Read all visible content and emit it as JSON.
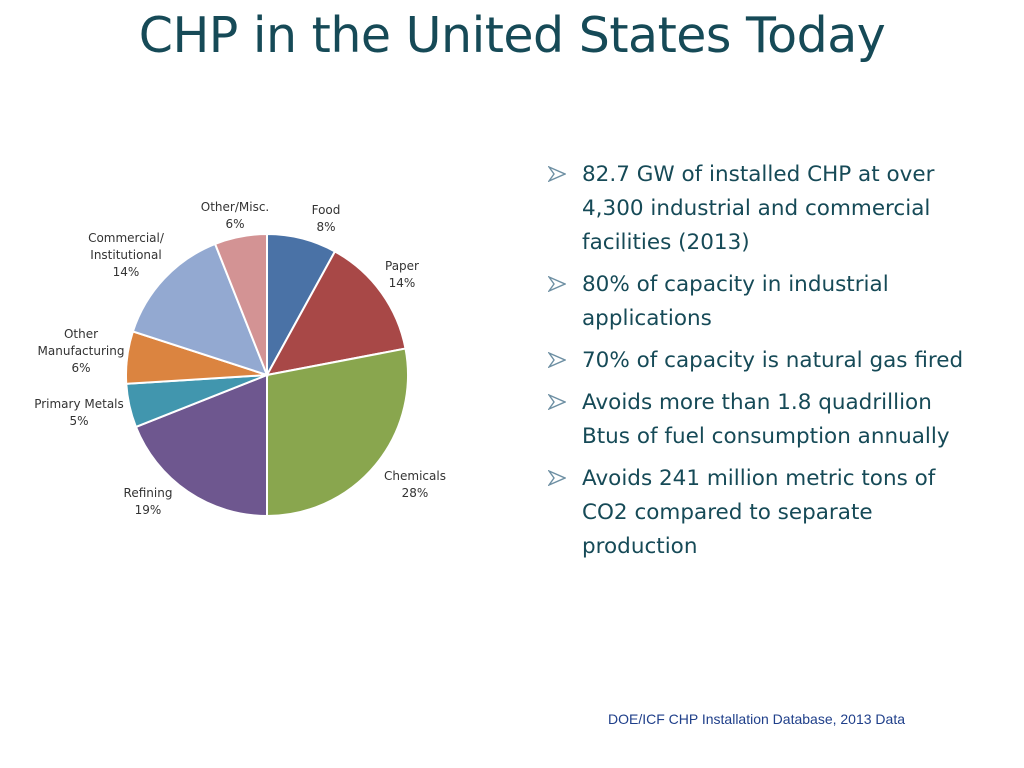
{
  "title": "CHP in the United States Today",
  "chart_data": {
    "type": "pie",
    "start_angle_deg": 0,
    "direction": "clockwise",
    "slices": [
      {
        "label": "Food",
        "value": 8,
        "value_label": "8%",
        "color": "#4a72a6"
      },
      {
        "label": "Paper",
        "value": 14,
        "value_label": "14%",
        "color": "#a84847"
      },
      {
        "label": "Chemicals",
        "value": 28,
        "value_label": "28%",
        "color": "#89a64e"
      },
      {
        "label": "Refining",
        "value": 19,
        "value_label": "19%",
        "color": "#6e578f"
      },
      {
        "label": "Primary Metals",
        "value": 5,
        "value_label": "5%",
        "color": "#4196ae"
      },
      {
        "label": "Other Manufacturing",
        "value": 6,
        "value_label": "6%",
        "color": "#db8440"
      },
      {
        "label": "Commercial/ Institutional",
        "value": 14,
        "value_label": "14%",
        "color": "#93a9d1"
      },
      {
        "label": "Other/Misc.",
        "value": 6,
        "value_label": "6%",
        "color": "#d39394"
      }
    ]
  },
  "bullets": [
    "82.7 GW of installed CHP at over 4,300 industrial and commercial facilities (2013)",
    "80% of capacity in industrial applications",
    "70% of capacity is natural gas fired",
    "Avoids more than 1.8 quadrillion Btus of fuel consumption annually",
    "Avoids 241 million metric tons of CO2 compared to separate production"
  ],
  "source": "DOE/ICF CHP Installation Database, 2013 Data",
  "colors": {
    "title": "#164a57",
    "bullet_text": "#164a57",
    "bullet_arrow": "#6d8fa3",
    "source_text": "#1f3f8a"
  },
  "icons": {
    "bullet": "arrowhead-bullet-icon"
  }
}
